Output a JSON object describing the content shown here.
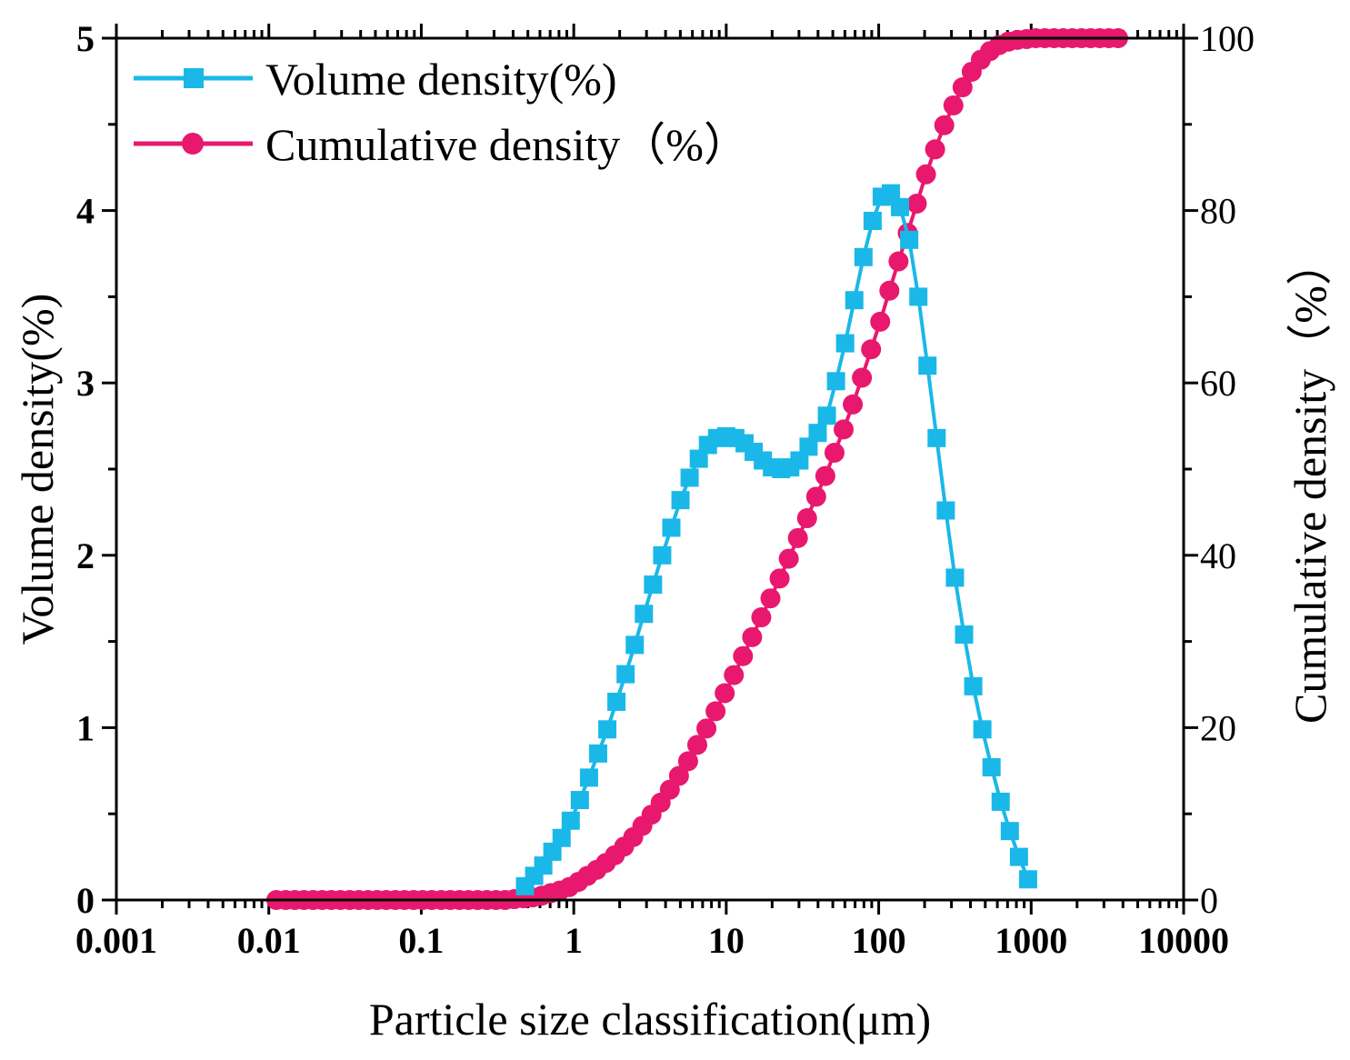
{
  "chart_data": {
    "type": "line",
    "title": "",
    "xlabel": "Particle size classification(μm)",
    "ylabel": "Volume density(%)",
    "y2label": "Cumulative density（%）",
    "xscale": "log",
    "xlim": [
      0.001,
      10000
    ],
    "ylim": [
      0,
      5
    ],
    "y2lim": [
      0,
      100
    ],
    "xticks": [
      "0.001",
      "0.01",
      "0.1",
      "1",
      "10",
      "100",
      "1000",
      "10000"
    ],
    "yticks": [
      "0",
      "1",
      "2",
      "3",
      "4",
      "5"
    ],
    "y2ticks": [
      "0",
      "20",
      "40",
      "60",
      "80",
      "100"
    ],
    "legend_position": "top-left",
    "series": [
      {
        "name": "Volume density(%)",
        "axis": "left",
        "color": "#1ab8e8",
        "marker": "square",
        "x": [
          0.479,
          0.55,
          0.631,
          0.724,
          0.832,
          0.955,
          1.096,
          1.259,
          1.445,
          1.66,
          1.905,
          2.188,
          2.512,
          2.884,
          3.311,
          3.802,
          4.365,
          5.012,
          5.754,
          6.607,
          7.586,
          8.71,
          10.0,
          11.48,
          13.18,
          15.14,
          17.38,
          19.95,
          22.91,
          26.3,
          30.2,
          34.67,
          39.81,
          45.71,
          52.48,
          60.26,
          69.18,
          79.43,
          91.2,
          104.7,
          120.2,
          138.0,
          158.5,
          182.0,
          208.9,
          239.9,
          275.4,
          316.2,
          363.1,
          416.9,
          478.6,
          549.5,
          631.0,
          724.4,
          831.8,
          955.0
        ],
        "values": [
          0.08,
          0.14,
          0.2,
          0.28,
          0.36,
          0.46,
          0.58,
          0.71,
          0.85,
          0.99,
          1.15,
          1.31,
          1.48,
          1.66,
          1.83,
          2.0,
          2.16,
          2.32,
          2.45,
          2.56,
          2.64,
          2.68,
          2.69,
          2.68,
          2.65,
          2.6,
          2.55,
          2.51,
          2.5,
          2.51,
          2.55,
          2.63,
          2.71,
          2.81,
          3.01,
          3.23,
          3.48,
          3.73,
          3.94,
          4.08,
          4.1,
          4.02,
          3.83,
          3.5,
          3.1,
          2.68,
          2.26,
          1.87,
          1.54,
          1.24,
          0.99,
          0.77,
          0.57,
          0.4,
          0.25,
          0.12
        ]
      },
      {
        "name": "Cumulative density（%）",
        "axis": "right",
        "color": "#e8186e",
        "marker": "circle",
        "x": [
          0.0112,
          0.0129,
          0.0148,
          0.017,
          0.0195,
          0.0224,
          0.0257,
          0.0295,
          0.0339,
          0.0389,
          0.0447,
          0.0513,
          0.0589,
          0.0676,
          0.0776,
          0.0891,
          0.102,
          0.117,
          0.135,
          0.155,
          0.178,
          0.204,
          0.234,
          0.269,
          0.309,
          0.355,
          0.407,
          0.468,
          0.537,
          0.617,
          0.708,
          0.813,
          0.933,
          1.072,
          1.23,
          1.413,
          1.622,
          1.862,
          2.138,
          2.455,
          2.818,
          3.236,
          3.715,
          4.266,
          4.898,
          5.623,
          6.457,
          7.413,
          8.511,
          9.772,
          11.22,
          12.88,
          14.79,
          16.98,
          19.5,
          22.39,
          25.7,
          29.51,
          33.88,
          38.9,
          44.67,
          51.29,
          58.88,
          67.61,
          77.62,
          89.13,
          102.3,
          117.5,
          134.9,
          154.9,
          177.8,
          204.2,
          234.4,
          269.2,
          309.0,
          354.8,
          407.4,
          467.7,
          537.0,
          616.6,
          707.9,
          812.8,
          933.3,
          1072,
          1230,
          1413,
          1622,
          1862,
          2138,
          2455,
          2818,
          3236,
          3715
        ],
        "values": [
          0.0,
          0.0,
          0.0,
          0.0,
          0.0,
          0.0,
          0.0,
          0.0,
          0.0,
          0.0,
          0.0,
          0.0,
          0.0,
          0.0,
          0.0,
          0.0,
          0.0,
          0.0,
          0.0,
          0.0,
          0.0,
          0.0,
          0.0,
          0.0,
          0.0,
          0.0,
          0.1,
          0.2,
          0.3,
          0.5,
          0.8,
          1.1,
          1.5,
          2.1,
          2.8,
          3.5,
          4.3,
          5.2,
          6.2,
          7.3,
          8.6,
          9.9,
          11.3,
          12.8,
          14.4,
          16.1,
          18.0,
          19.9,
          21.9,
          24.0,
          26.1,
          28.3,
          30.5,
          32.8,
          35.0,
          37.3,
          39.6,
          42.0,
          44.3,
          46.8,
          49.2,
          51.9,
          54.6,
          57.5,
          60.6,
          63.9,
          67.1,
          70.7,
          74.1,
          77.4,
          80.8,
          84.2,
          87.1,
          89.9,
          92.2,
          94.3,
          96.1,
          97.5,
          98.5,
          99.2,
          99.6,
          99.8,
          99.9,
          100.0,
          100.0,
          100.0,
          100.0,
          100.0,
          100.0,
          100.0,
          100.0,
          100.0,
          100.0
        ]
      }
    ]
  }
}
